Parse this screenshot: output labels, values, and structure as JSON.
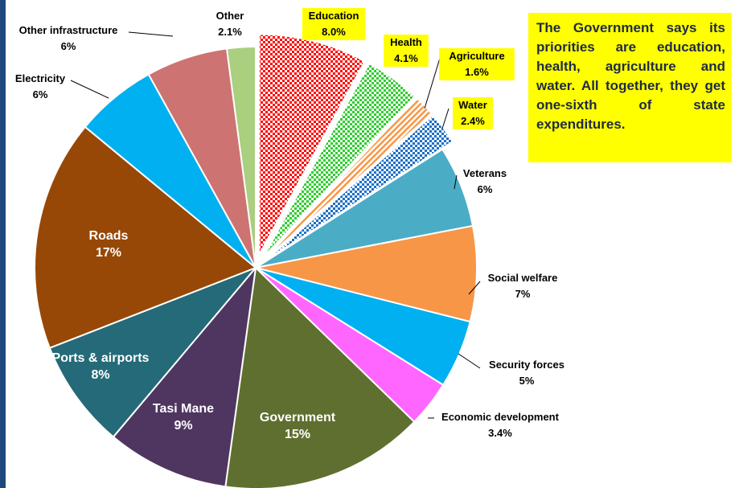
{
  "chart_data": {
    "type": "pie",
    "title": "",
    "slices": [
      {
        "label": "Education",
        "value_text": "8.0%",
        "value": 8.0,
        "color": "#ff0000",
        "pattern": "checker",
        "exploded": true,
        "highlight": true
      },
      {
        "label": "Health",
        "value_text": "4.1%",
        "value": 4.1,
        "color": "#33cc33",
        "pattern": "checker",
        "exploded": true,
        "highlight": true
      },
      {
        "label": "Agriculture",
        "value_text": "1.6%",
        "value": 1.6,
        "color": "#f79646",
        "pattern": "diagonal",
        "exploded": true,
        "highlight": true
      },
      {
        "label": "Water",
        "value_text": "2.4%",
        "value": 2.4,
        "color": "#1f6fc5",
        "pattern": "checker",
        "exploded": true,
        "highlight": true
      },
      {
        "label": "Veterans",
        "value_text": "6%",
        "value": 6,
        "color": "#4bacc6",
        "pattern": "solid"
      },
      {
        "label": "Social welfare",
        "value_text": "7%",
        "value": 7,
        "color": "#f79646",
        "pattern": "solid"
      },
      {
        "label": "Security forces",
        "value_text": "5%",
        "value": 5,
        "color": "#00b0f0",
        "pattern": "solid"
      },
      {
        "label": "Economic development",
        "value_text": "3.4%",
        "value": 3.4,
        "color": "#ff66ff",
        "pattern": "solid"
      },
      {
        "label": "Government",
        "value_text": "15%",
        "value": 15,
        "color": "#5f6f2f",
        "pattern": "solid"
      },
      {
        "label": "Tasi Mane",
        "value_text": "9%",
        "value": 9,
        "color": "#4f3660",
        "pattern": "solid"
      },
      {
        "label": "Ports & airports",
        "value_text": "8%",
        "value": 8,
        "color": "#256a78",
        "pattern": "solid"
      },
      {
        "label": "Roads",
        "value_text": "17%",
        "value": 17,
        "color": "#974806",
        "pattern": "solid"
      },
      {
        "label": "Electricity",
        "value_text": "6%",
        "value": 6,
        "color": "#00b0f0",
        "pattern": "solid"
      },
      {
        "label": "Other infrastructure",
        "value_text": "6%",
        "value": 6,
        "color": "#cd7372",
        "pattern": "solid"
      },
      {
        "label": "Other",
        "value_text": "2.1%",
        "value": 2.1,
        "color": "#a9cf7f",
        "pattern": "solid"
      }
    ]
  },
  "note": {
    "text": "The Government says its priorities are education, health, agriculture and water. All together, they get one-sixth of state expenditures.",
    "background": "#ffff00"
  },
  "colors": {
    "left_bar": "#1f497d",
    "label_highlight": "#ffff00"
  }
}
